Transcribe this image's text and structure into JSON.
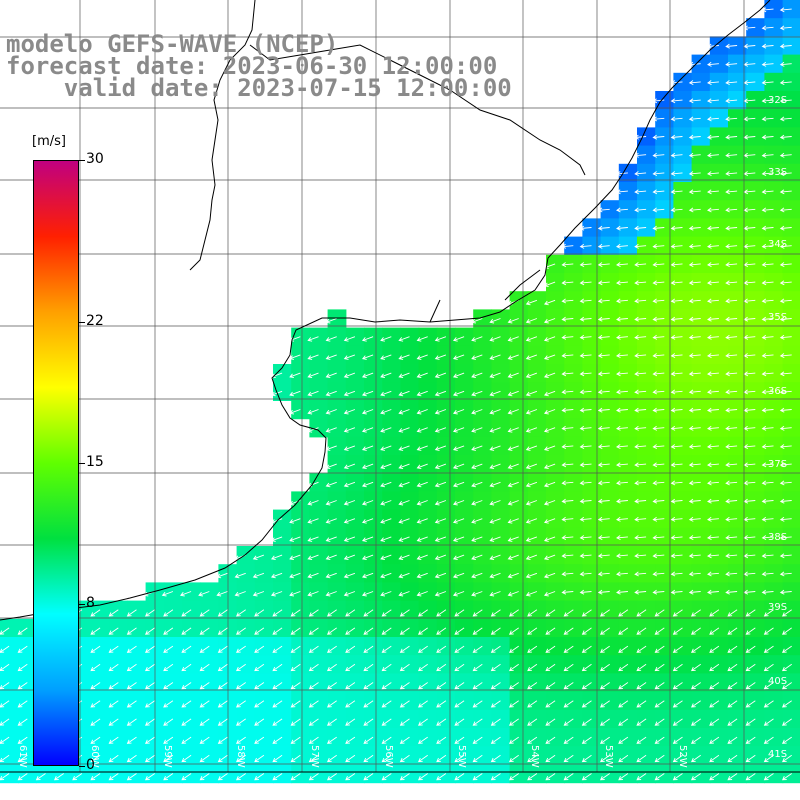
{
  "title": {
    "line1": "modelo GEFS-WAVE (NCEP)",
    "line2": "forecast date: 2023-06-30 12:00:00",
    "line3": "valid date: 2023-07-15 12:00:00"
  },
  "colorbar": {
    "unit": "[m/s]",
    "min": 0,
    "max": 30,
    "ticks": [
      {
        "label": "30",
        "value": 30
      },
      {
        "label": "22",
        "value": 22
      },
      {
        "label": "15",
        "value": 15
      },
      {
        "label": "8",
        "value": 8
      },
      {
        "label": "0",
        "value": 0
      }
    ],
    "colors": [
      "#0000ff",
      "#00a0ff",
      "#00ffff",
      "#00e040",
      "#60ff00",
      "#ffff00",
      "#ffa000",
      "#ff2000",
      "#c00080"
    ]
  },
  "map": {
    "lon_range": [
      -62,
      -51
    ],
    "lat_range": [
      -41.5,
      -31
    ],
    "lat_labels": [
      "32S",
      "33S",
      "34S",
      "35S",
      "36S",
      "37S",
      "38S",
      "39S",
      "40S",
      "41S"
    ],
    "lon_labels": [
      "61W",
      "60W",
      "59W",
      "58W",
      "57W",
      "56W",
      "55W",
      "54W",
      "53W",
      "52W"
    ],
    "grid": true,
    "land_color": "#ffffff",
    "coastline_color": "#000000"
  }
}
